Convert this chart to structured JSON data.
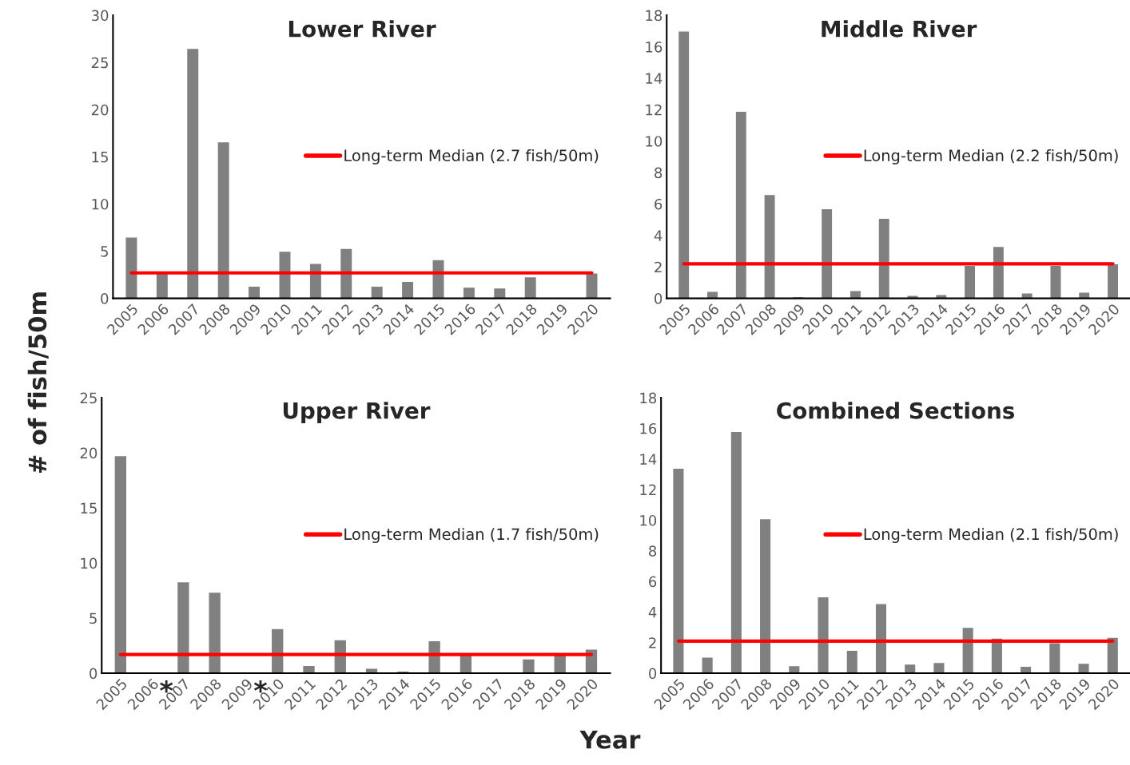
{
  "chart_data": [
    {
      "type": "bar",
      "title": "Lower River",
      "ylabel": "# of fish/50m",
      "categories": [
        "2005",
        "2006",
        "2007",
        "2008",
        "2009",
        "2010",
        "2011",
        "2012",
        "2013",
        "2014",
        "2015",
        "2016",
        "2017",
        "2018",
        "2019",
        "2020"
      ],
      "color": "#808080",
      "values": [
        6.5,
        2.7,
        26.5,
        16.6,
        1.3,
        5.0,
        3.7,
        5.3,
        1.3,
        1.8,
        4.1,
        1.2,
        1.1,
        2.3,
        0.1,
        2.7
      ],
      "ylim": [
        0,
        30
      ],
      "yticks": [
        0,
        5,
        10,
        15,
        20,
        25,
        30
      ],
      "ref_lines": [
        {
          "axis": "y",
          "value": 2.7,
          "label": "Long-term Median (2.7 fish/50m)",
          "color": "#ff0000"
        }
      ],
      "legend": "right",
      "grid": false
    },
    {
      "type": "bar",
      "title": "Middle River",
      "categories": [
        "2005",
        "2006",
        "2007",
        "2008",
        "2009",
        "2010",
        "2011",
        "2012",
        "2013",
        "2014",
        "2015",
        "2016",
        "2017",
        "2018",
        "2019",
        "2020"
      ],
      "color": "#808080",
      "values": [
        17.0,
        0.45,
        11.9,
        6.6,
        0.1,
        5.7,
        0.5,
        5.1,
        0.2,
        0.25,
        2.1,
        3.3,
        0.35,
        2.1,
        0.4,
        2.2
      ],
      "ylim": [
        0,
        18
      ],
      "yticks": [
        0,
        2,
        4,
        6,
        8,
        10,
        12,
        14,
        16,
        18
      ],
      "ref_lines": [
        {
          "axis": "y",
          "value": 2.2,
          "label": "Long-term Median (2.2 fish/50m)",
          "color": "#ff0000"
        }
      ],
      "legend": "right",
      "grid": false
    },
    {
      "type": "bar",
      "title": "Upper River",
      "xlabel": "Year",
      "categories": [
        "2005",
        "2006",
        "2007",
        "2008",
        "2009",
        "2010",
        "2011",
        "2012",
        "2013",
        "2014",
        "2015",
        "2016",
        "2017",
        "2018",
        "2019",
        "2020"
      ],
      "color": "#808080",
      "values": [
        19.75,
        null,
        8.3,
        7.35,
        null,
        4.05,
        0.7,
        3.05,
        0.45,
        0.2,
        2.95,
        1.7,
        null,
        1.3,
        1.7,
        2.2
      ],
      "ylim": [
        0,
        25
      ],
      "yticks": [
        0,
        5,
        10,
        15,
        20,
        25
      ],
      "annotations": [
        "*",
        "*"
      ],
      "ref_lines": [
        {
          "axis": "y",
          "value": 1.7,
          "label": "Long-term Median (1.7 fish/50m)",
          "color": "#ff0000"
        }
      ],
      "legend": "right",
      "grid": false
    },
    {
      "type": "bar",
      "title": "Combined Sections",
      "categories": [
        "2005",
        "2006",
        "2007",
        "2008",
        "2009",
        "2010",
        "2011",
        "2012",
        "2013",
        "2014",
        "2015",
        "2016",
        "2017",
        "2018",
        "2019",
        "2020"
      ],
      "color": "#808080",
      "values": [
        13.4,
        1.05,
        15.8,
        10.1,
        0.5,
        5.0,
        1.5,
        4.55,
        0.6,
        0.7,
        3.0,
        2.3,
        0.45,
        2.0,
        0.65,
        2.35
      ],
      "ylim": [
        0,
        18
      ],
      "yticks": [
        0,
        2,
        4,
        6,
        8,
        10,
        12,
        14,
        16,
        18
      ],
      "ref_lines": [
        {
          "axis": "y",
          "value": 2.1,
          "label": "Long-term Median (2.1 fish/50m)",
          "color": "#ff0000"
        }
      ],
      "legend": "right",
      "grid": false
    }
  ]
}
